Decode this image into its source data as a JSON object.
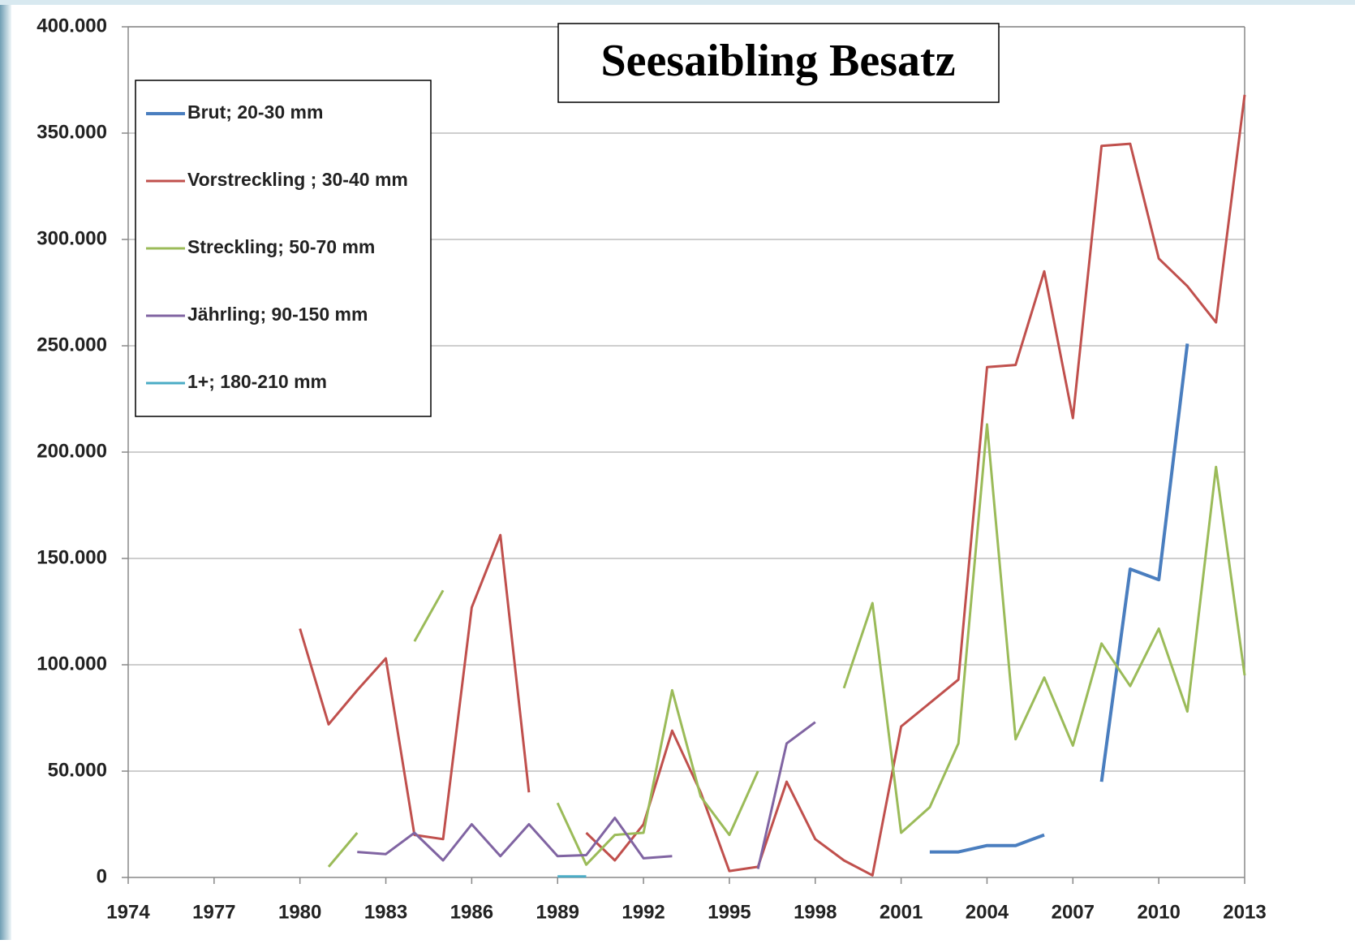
{
  "chart_data": {
    "type": "line",
    "title": "Seesaibling Besatz",
    "x": [
      1974,
      1975,
      1976,
      1977,
      1978,
      1979,
      1980,
      1981,
      1982,
      1983,
      1984,
      1985,
      1986,
      1987,
      1988,
      1989,
      1990,
      1991,
      1992,
      1993,
      1994,
      1995,
      1996,
      1997,
      1998,
      1999,
      2000,
      2001,
      2002,
      2003,
      2004,
      2005,
      2006,
      2007,
      2008,
      2009,
      2010,
      2011,
      2012,
      2013
    ],
    "series": [
      {
        "name": "Brut; 20-30 mm",
        "color": "#4a7ebf",
        "values": [
          null,
          null,
          null,
          null,
          null,
          null,
          null,
          null,
          null,
          null,
          null,
          null,
          null,
          null,
          null,
          null,
          null,
          null,
          null,
          null,
          null,
          null,
          null,
          null,
          null,
          null,
          null,
          null,
          12000,
          12000,
          15000,
          15000,
          20000,
          null,
          45000,
          145000,
          140000,
          251000,
          null,
          null
        ]
      },
      {
        "name": "Vorstreckling ; 30-40 mm",
        "color": "#c0504d",
        "values": [
          null,
          null,
          null,
          null,
          null,
          null,
          117000,
          72000,
          88000,
          103000,
          20000,
          18000,
          127000,
          161000,
          40000,
          null,
          21000,
          8000,
          25000,
          69000,
          40000,
          3000,
          5000,
          45000,
          18000,
          8000,
          1000,
          71000,
          82000,
          93000,
          240000,
          241000,
          285000,
          216000,
          344000,
          345000,
          291000,
          278000,
          261000,
          368000
        ]
      },
      {
        "name": "Streckling; 50-70 mm",
        "color": "#9bbb59",
        "values": [
          null,
          null,
          null,
          null,
          null,
          null,
          null,
          5000,
          21000,
          null,
          111000,
          135000,
          null,
          null,
          null,
          35000,
          6000,
          20000,
          21000,
          88000,
          38000,
          20000,
          50000,
          null,
          null,
          89000,
          129000,
          21000,
          33000,
          63000,
          213000,
          65000,
          94000,
          62000,
          110000,
          90000,
          117000,
          78000,
          193000,
          95000
        ]
      },
      {
        "name": "Jährling; 90-150 mm",
        "color": "#8064a2",
        "values": [
          null,
          null,
          null,
          null,
          null,
          null,
          null,
          null,
          12000,
          11000,
          21000,
          8000,
          25000,
          10000,
          25000,
          10000,
          10500,
          28000,
          9000,
          10000,
          null,
          null,
          4000,
          63000,
          73000,
          null,
          null,
          null,
          null,
          null,
          null,
          null,
          null,
          null,
          null,
          null,
          null,
          null,
          null,
          null
        ]
      },
      {
        "name": "1+; 180-210 mm",
        "color": "#4bacc6",
        "values": [
          null,
          null,
          null,
          null,
          null,
          null,
          null,
          null,
          null,
          null,
          null,
          null,
          null,
          null,
          null,
          500,
          500,
          null,
          null,
          null,
          null,
          null,
          null,
          null,
          null,
          null,
          null,
          null,
          null,
          null,
          null,
          null,
          null,
          null,
          null,
          null,
          null,
          null,
          null,
          null
        ]
      }
    ],
    "xlim": [
      1974,
      2013
    ],
    "xticks": [
      1974,
      1977,
      1980,
      1983,
      1986,
      1989,
      1992,
      1995,
      1998,
      2001,
      2004,
      2007,
      2010,
      2013
    ],
    "ylim": [
      0,
      400000
    ],
    "yticks": [
      0,
      {
        "value": 50000,
        "label": "50.000"
      },
      {
        "value": 100000,
        "label": "100.000"
      },
      {
        "value": 150000,
        "label": "150.000"
      },
      {
        "value": 200000,
        "label": "200.000"
      },
      {
        "value": 250000,
        "label": "250.000"
      },
      {
        "value": 300000,
        "label": "300.000"
      },
      {
        "value": 350000,
        "label": "350.000"
      },
      {
        "value": 400000,
        "label": "400.000"
      }
    ],
    "grid": true,
    "legend": "upper left"
  }
}
